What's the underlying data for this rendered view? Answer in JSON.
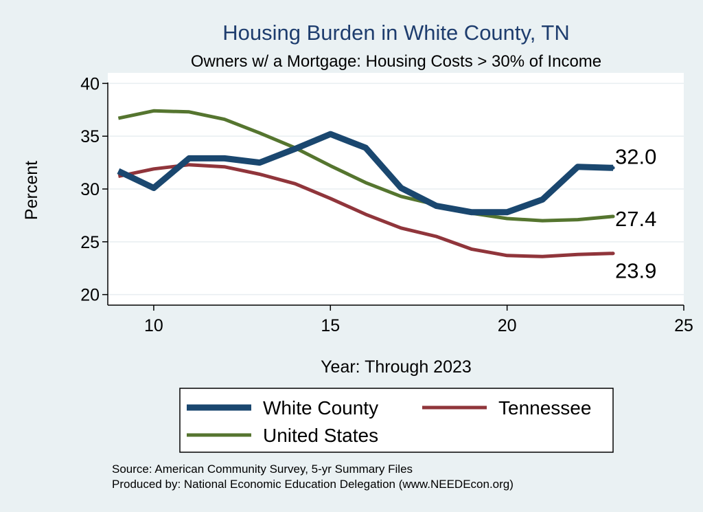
{
  "chart_data": {
    "type": "line",
    "title": "Housing Burden in White County, TN",
    "subtitle": "Owners w/ a Mortgage: Housing Costs > 30% of Income",
    "xlabel": "Year: Through 2023",
    "ylabel": "Percent",
    "xlim": [
      8.7,
      25
    ],
    "ylim": [
      19,
      41
    ],
    "xticks": [
      10,
      15,
      20,
      25
    ],
    "yticks": [
      20,
      25,
      30,
      35,
      40
    ],
    "grid": true,
    "x": [
      9,
      10,
      11,
      12,
      13,
      14,
      15,
      16,
      17,
      18,
      19,
      20,
      21,
      22,
      23
    ],
    "series": [
      {
        "name": "White County",
        "color": "#1a476f",
        "values": [
          31.7,
          30.1,
          32.9,
          32.9,
          32.5,
          33.8,
          35.2,
          33.9,
          30.1,
          28.4,
          27.8,
          27.8,
          29.0,
          32.1,
          32.0
        ],
        "end_label": "32.0"
      },
      {
        "name": "Tennessee",
        "color": "#90353b",
        "values": [
          31.2,
          31.9,
          32.3,
          32.1,
          31.4,
          30.5,
          29.1,
          27.6,
          26.3,
          25.5,
          24.3,
          23.7,
          23.6,
          23.8,
          23.9
        ],
        "end_label": "23.9"
      },
      {
        "name": "United States",
        "color": "#55752f",
        "values": [
          36.7,
          37.4,
          37.3,
          36.6,
          35.3,
          33.9,
          32.2,
          30.6,
          29.3,
          28.5,
          27.7,
          27.2,
          27.0,
          27.1,
          27.4
        ],
        "end_label": "27.4"
      }
    ],
    "legend": {
      "position": "bottom",
      "entries": [
        "White County",
        "Tennessee",
        "United States"
      ]
    }
  },
  "notes": {
    "source": "Source: American Community Survey, 5-yr Summary Files",
    "produced_by": "Produced by: National Economic Education Delegation (www.NEEDEcon.org)"
  }
}
